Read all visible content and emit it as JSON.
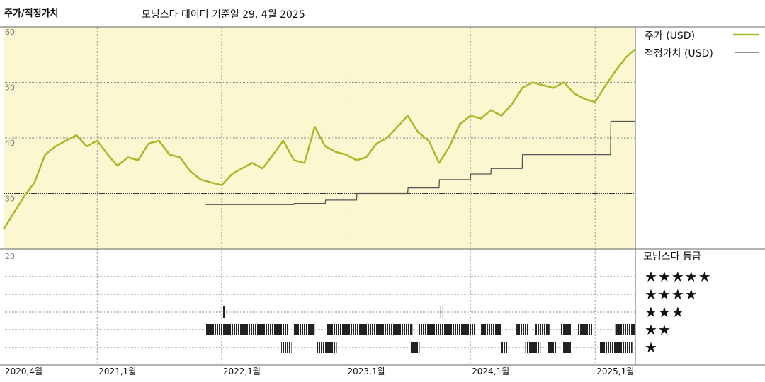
{
  "header": {
    "title": "주가/적정가치",
    "subtitle": "모닝스타 데이터 기준일 29. 4월 2025"
  },
  "legend": {
    "price_label": "주가 (USD)",
    "fair_value_label": "적정가치 (USD)"
  },
  "rating_panel": {
    "title": "모닝스타 등급",
    "levels": [
      "★★★★★",
      "★★★★",
      "★★★",
      "★★",
      "★"
    ]
  },
  "colors": {
    "price": "#a8b82a",
    "fair_value": "#555555",
    "panel_bg": "#fbf7d0"
  },
  "chart_data": {
    "type": "line",
    "x_range": [
      "2020-04-01",
      "2025-04-29"
    ],
    "x_ticks": [
      {
        "date": "2020-04-01",
        "label": "2020,4월"
      },
      {
        "date": "2021-01-01",
        "label": "2021,1월"
      },
      {
        "date": "2022-01-01",
        "label": "2022,1월"
      },
      {
        "date": "2023-01-01",
        "label": "2023,1월"
      },
      {
        "date": "2024-01-01",
        "label": "2024,1월"
      },
      {
        "date": "2025-01-01",
        "label": "2025,1월"
      }
    ],
    "ylim": [
      20,
      60
    ],
    "y_ticks": [
      60,
      50,
      40,
      30,
      20
    ],
    "series": [
      {
        "name": "주가 (USD)",
        "x": [
          "2020-04-01",
          "2020-05-01",
          "2020-06-01",
          "2020-07-01",
          "2020-08-01",
          "2020-09-01",
          "2020-10-01",
          "2020-11-01",
          "2020-12-01",
          "2021-01-01",
          "2021-02-01",
          "2021-03-01",
          "2021-04-01",
          "2021-05-01",
          "2021-06-01",
          "2021-07-01",
          "2021-08-01",
          "2021-09-01",
          "2021-10-01",
          "2021-11-01",
          "2021-12-01",
          "2022-01-01",
          "2022-02-01",
          "2022-03-01",
          "2022-04-01",
          "2022-05-01",
          "2022-06-01",
          "2022-07-01",
          "2022-08-01",
          "2022-09-01",
          "2022-10-01",
          "2022-11-01",
          "2022-12-01",
          "2023-01-01",
          "2023-02-01",
          "2023-03-01",
          "2023-04-01",
          "2023-05-01",
          "2023-06-01",
          "2023-07-01",
          "2023-08-01",
          "2023-09-01",
          "2023-10-01",
          "2023-11-01",
          "2023-12-01",
          "2024-01-01",
          "2024-02-01",
          "2024-03-01",
          "2024-04-01",
          "2024-05-01",
          "2024-06-01",
          "2024-07-01",
          "2024-08-01",
          "2024-09-01",
          "2024-10-01",
          "2024-11-01",
          "2024-12-01",
          "2025-01-01",
          "2025-02-01",
          "2025-03-01",
          "2025-04-01",
          "2025-04-29"
        ],
        "values": [
          23.5,
          26.5,
          29.5,
          32,
          37,
          38.5,
          39.5,
          40.5,
          38.5,
          39.5,
          37,
          35,
          36.5,
          36,
          39,
          39.5,
          37,
          36.5,
          34,
          32.5,
          32,
          31.5,
          33.5,
          34.5,
          35.5,
          34.5,
          37,
          39.5,
          36,
          35.5,
          42,
          38.5,
          37.5,
          37,
          36,
          36.5,
          39,
          40,
          42,
          44,
          41,
          39.5,
          35.5,
          38.5,
          42.5,
          44,
          43.5,
          45,
          44,
          46,
          49,
          50,
          49.5,
          49,
          50,
          48,
          47,
          46.5,
          49.5,
          52,
          54.5,
          56
        ]
      },
      {
        "name": "적정가치 (USD)",
        "x": [
          "2021-11-15",
          "2022-08-01",
          "2022-08-02",
          "2022-11-01",
          "2022-11-02",
          "2023-02-01",
          "2023-02-02",
          "2023-07-01",
          "2023-07-02",
          "2023-10-01",
          "2023-10-02",
          "2024-01-01",
          "2024-01-02",
          "2024-03-01",
          "2024-03-02",
          "2024-06-01",
          "2024-06-02",
          "2025-02-15",
          "2025-02-16",
          "2025-04-29"
        ],
        "values": [
          28,
          28,
          28.2,
          28.2,
          28.8,
          28.8,
          30,
          30,
          31,
          31,
          32.5,
          32.5,
          33.5,
          33.5,
          34.5,
          34.5,
          37,
          37,
          43,
          43
        ]
      }
    ],
    "ratings": {
      "levels": [
        5,
        4,
        3,
        2,
        1
      ],
      "periods": [
        {
          "stars": 3,
          "start": "2022-01-05",
          "end": "2022-01-10"
        },
        {
          "stars": 3,
          "start": "2023-10-05",
          "end": "2023-10-10"
        },
        {
          "stars": 2,
          "start": "2021-11-15",
          "end": "2022-07-15"
        },
        {
          "stars": 2,
          "start": "2022-08-01",
          "end": "2022-10-01"
        },
        {
          "stars": 2,
          "start": "2022-11-05",
          "end": "2023-07-15"
        },
        {
          "stars": 2,
          "start": "2023-08-01",
          "end": "2024-01-15"
        },
        {
          "stars": 2,
          "start": "2024-02-01",
          "end": "2024-04-01"
        },
        {
          "stars": 2,
          "start": "2024-05-15",
          "end": "2024-06-20"
        },
        {
          "stars": 2,
          "start": "2024-07-10",
          "end": "2024-08-20"
        },
        {
          "stars": 2,
          "start": "2024-09-20",
          "end": "2024-10-25"
        },
        {
          "stars": 2,
          "start": "2024-11-10",
          "end": "2024-12-25"
        },
        {
          "stars": 2,
          "start": "2025-03-01",
          "end": "2025-04-29"
        },
        {
          "stars": 1,
          "start": "2022-06-25",
          "end": "2022-07-25"
        },
        {
          "stars": 1,
          "start": "2022-10-05",
          "end": "2022-12-05"
        },
        {
          "stars": 1,
          "start": "2023-07-10",
          "end": "2023-08-05"
        },
        {
          "stars": 1,
          "start": "2024-04-01",
          "end": "2024-04-20"
        },
        {
          "stars": 1,
          "start": "2024-06-10",
          "end": "2024-07-25"
        },
        {
          "stars": 1,
          "start": "2024-08-15",
          "end": "2024-09-10"
        },
        {
          "stars": 1,
          "start": "2024-09-25",
          "end": "2024-10-25"
        },
        {
          "stars": 1,
          "start": "2025-01-15",
          "end": "2025-04-20"
        }
      ]
    }
  }
}
